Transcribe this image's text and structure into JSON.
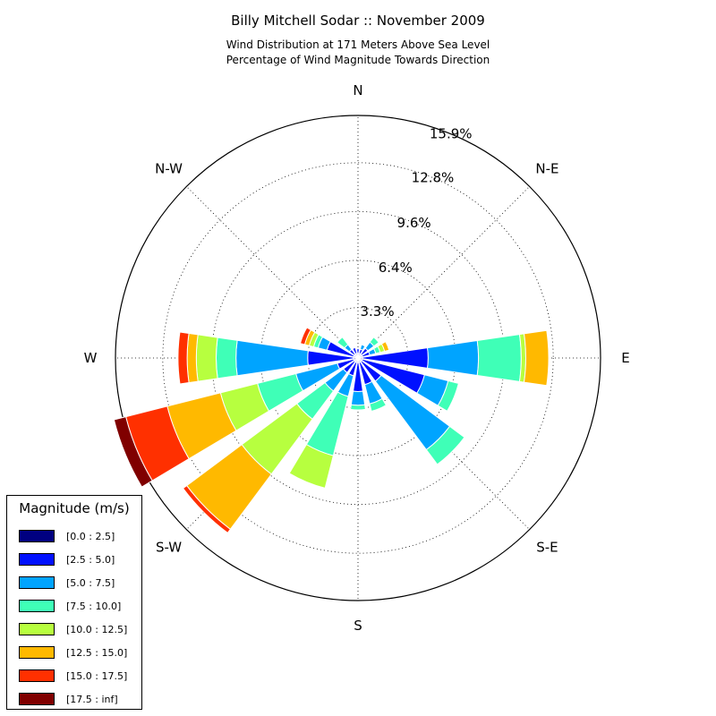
{
  "title": "Billy Mitchell Sodar :: November 2009",
  "subtitle_lines": [
    "Wind Distribution at 171 Meters Above Sea Level",
    "Percentage of Wind Magnitude Towards Direction"
  ],
  "legend": {
    "title": "Magnitude (m/s)",
    "items": [
      {
        "label": "[0.0 : 2.5]",
        "color": "#000080"
      },
      {
        "label": "[2.5 : 5.0]",
        "color": "#0010ff"
      },
      {
        "label": "[5.0 : 7.5]",
        "color": "#00a4ff"
      },
      {
        "label": "[7.5 : 10.0]",
        "color": "#3fffb7"
      },
      {
        "label": "[10.0 : 12.5]",
        "color": "#b7ff3f"
      },
      {
        "label": "[12.5 : 15.0]",
        "color": "#ffb900"
      },
      {
        "label": "[15.0 : 17.5]",
        "color": "#ff3000"
      },
      {
        "label": "[17.5 : inf]",
        "color": "#800000"
      }
    ]
  },
  "chart_data": {
    "type": "bar",
    "rmax": 15.9,
    "radial_ticks": [
      "3.3%",
      "6.4%",
      "9.6%",
      "12.8%",
      "15.9%"
    ],
    "radial_tick_values": [
      3.3,
      6.4,
      9.6,
      12.8,
      15.9
    ],
    "direction_labels": [
      "N",
      "N-E",
      "E",
      "S-E",
      "S",
      "S-W",
      "W",
      "N-W"
    ],
    "grid": true,
    "legend_position": "bottom-left",
    "bins": [
      "[0.0 : 2.5]",
      "[2.5 : 5.0]",
      "[5.0 : 7.5]",
      "[7.5 : 10.0]",
      "[10.0 : 12.5]",
      "[12.5 : 15.0]",
      "[15.0 : 17.5]",
      "[17.5 : inf]"
    ],
    "sectors": [
      {
        "direction_deg": 0,
        "values": [
          0.3,
          0.3,
          0,
          0,
          0,
          0,
          0,
          0
        ]
      },
      {
        "direction_deg": 22.5,
        "values": [
          0.3,
          0.3,
          0.3,
          0,
          0,
          0,
          0,
          0
        ]
      },
      {
        "direction_deg": 45,
        "values": [
          0.3,
          0.5,
          0.5,
          0.4,
          0,
          0,
          0,
          0
        ]
      },
      {
        "direction_deg": 67.5,
        "values": [
          0.3,
          0.5,
          0.4,
          0.3,
          0.3,
          0.3,
          0,
          0
        ]
      },
      {
        "direction_deg": 90,
        "values": [
          0.3,
          4.3,
          3.3,
          2.8,
          0.3,
          1.5,
          0,
          0
        ]
      },
      {
        "direction_deg": 112.5,
        "values": [
          0.3,
          4.2,
          1.6,
          0.7,
          0,
          0,
          0,
          0
        ]
      },
      {
        "direction_deg": 135,
        "values": [
          0.3,
          1.6,
          5.6,
          1.2,
          0,
          0,
          0,
          0
        ]
      },
      {
        "direction_deg": 157.5,
        "values": [
          0.3,
          1.5,
          1.3,
          0.5,
          0,
          0,
          0,
          0
        ]
      },
      {
        "direction_deg": 180,
        "values": [
          0.3,
          1.9,
          0.9,
          0.3,
          0,
          0,
          0,
          0
        ]
      },
      {
        "direction_deg": 202.5,
        "values": [
          0.3,
          0.9,
          1.4,
          4.0,
          2.2,
          0,
          0,
          0
        ]
      },
      {
        "direction_deg": 225,
        "values": [
          0.3,
          0.9,
          1.5,
          2.3,
          4.5,
          4.5,
          0.3,
          0
        ]
      },
      {
        "direction_deg": 247.5,
        "values": [
          0.3,
          1.1,
          2.8,
          2.6,
          2.5,
          3.6,
          2.8,
          0.8
        ]
      },
      {
        "direction_deg": 270,
        "values": [
          0.3,
          3.0,
          4.7,
          1.3,
          1.3,
          0.6,
          0.6,
          0
        ]
      },
      {
        "direction_deg": 292.5,
        "values": [
          0.3,
          1.8,
          0.6,
          0.3,
          0.3,
          0.3,
          0.3,
          0
        ]
      },
      {
        "direction_deg": 315,
        "values": [
          0.3,
          0.4,
          0.4,
          0.6,
          0,
          0,
          0,
          0
        ]
      },
      {
        "direction_deg": 337.5,
        "values": [
          0.3,
          0.4,
          0,
          0,
          0,
          0,
          0,
          0
        ]
      }
    ]
  }
}
